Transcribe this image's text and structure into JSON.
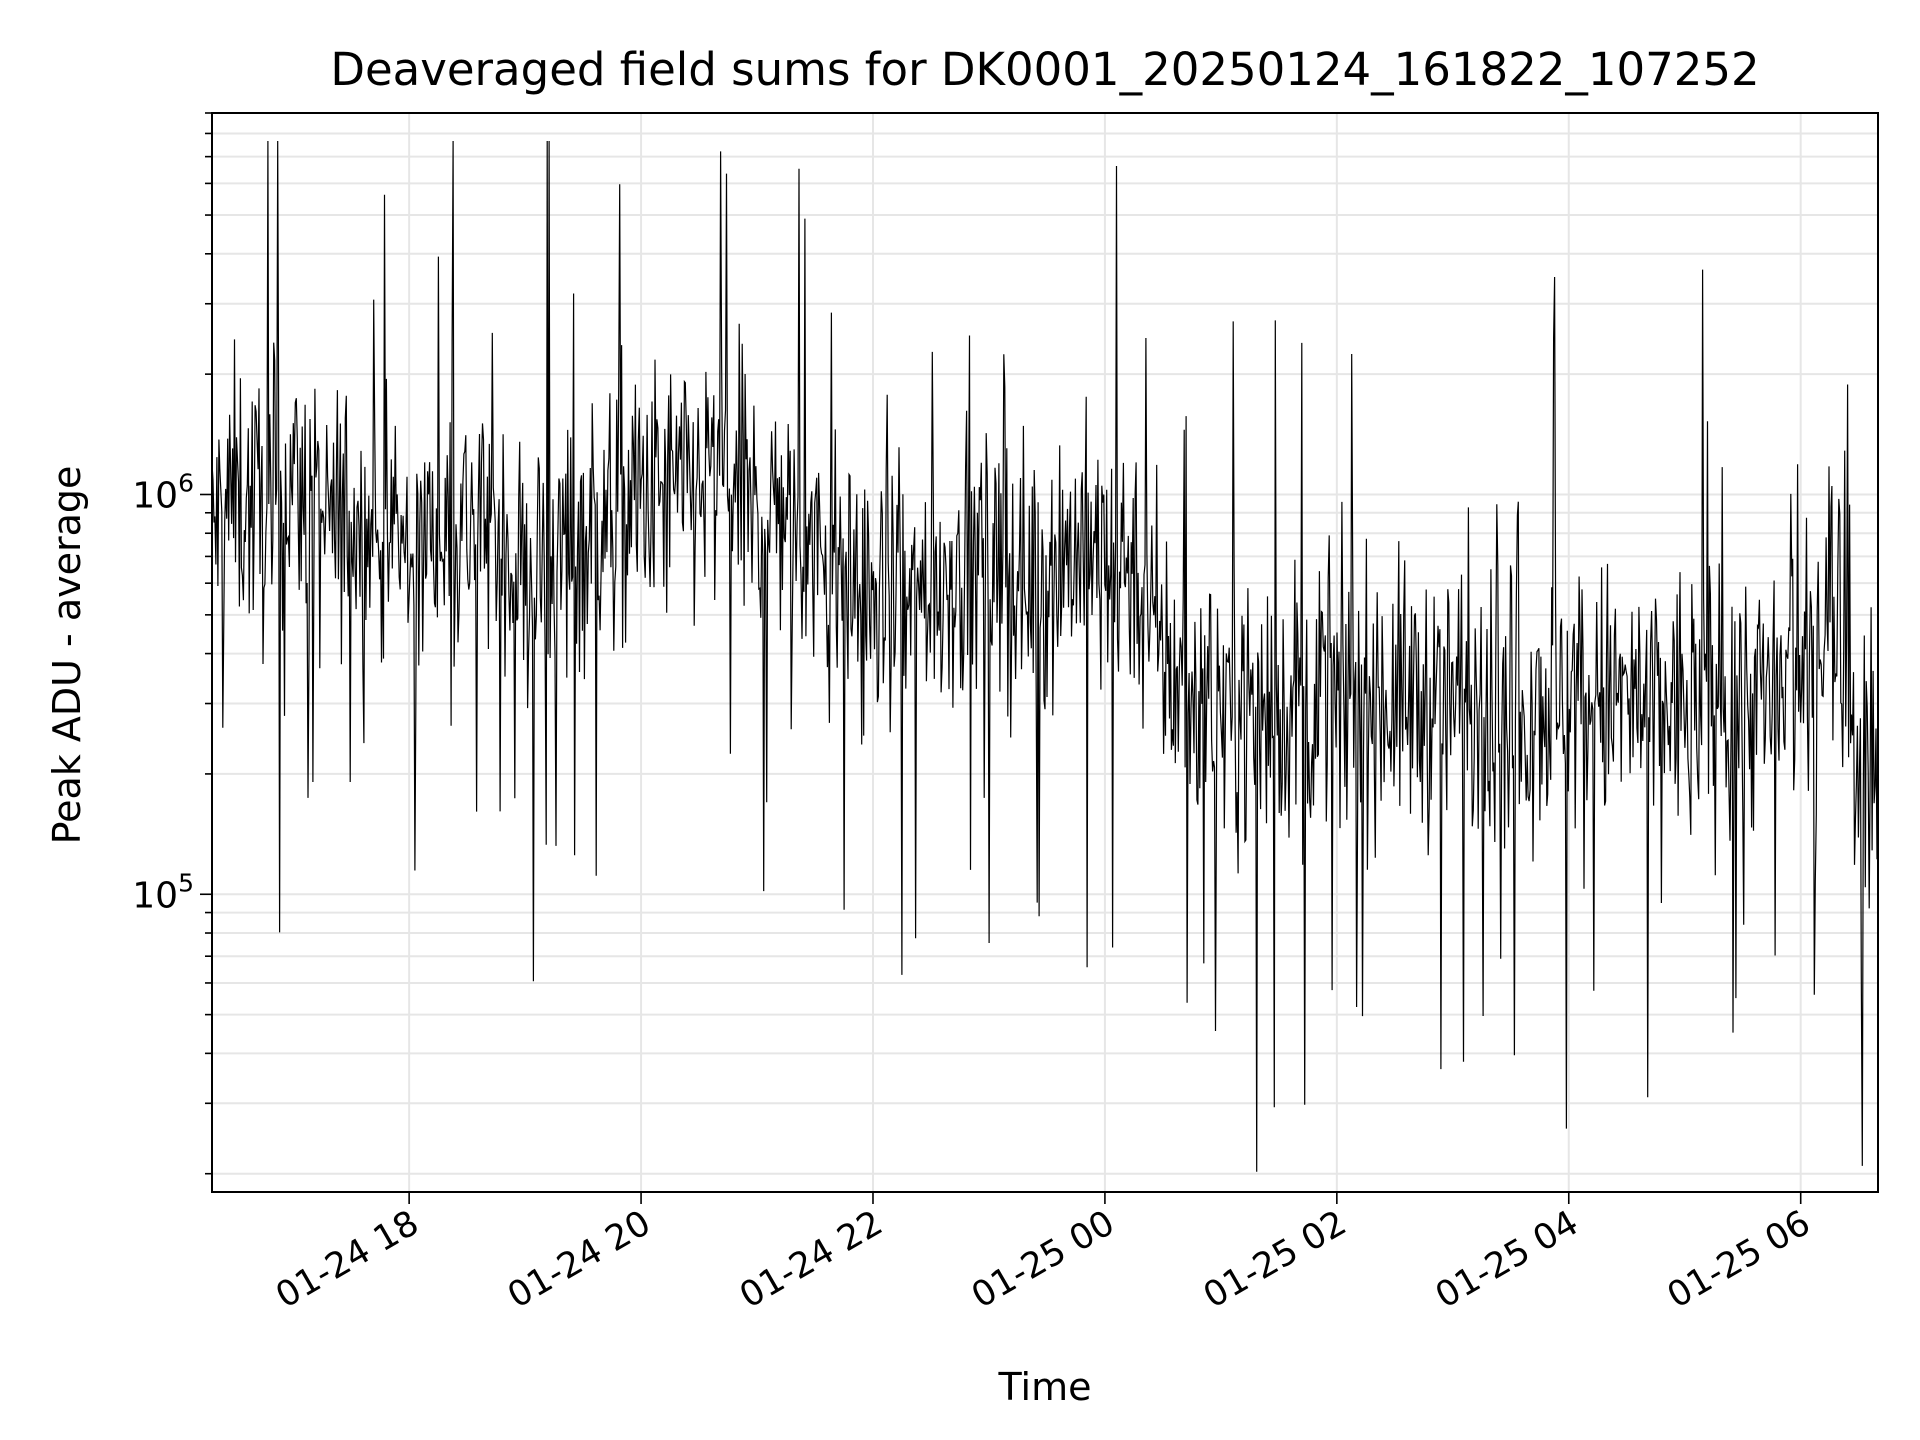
{
  "chart_data": {
    "type": "line",
    "title": "Deaveraged field sums for DK0001_20250124_161822_107252",
    "xlabel": "Time",
    "ylabel": "Peak ADU - average",
    "y_scale": "log",
    "ylim": [
      18000,
      9000000
    ],
    "xlim": [
      "2025-01-24 16:18",
      "2025-01-25 06:40"
    ],
    "grid": true,
    "line_color": "#000000",
    "x_ticks": [
      {
        "value": "2025-01-24 18:00",
        "label": "01-24 18"
      },
      {
        "value": "2025-01-24 20:00",
        "label": "01-24 20"
      },
      {
        "value": "2025-01-24 22:00",
        "label": "01-24 22"
      },
      {
        "value": "2025-01-25 00:00",
        "label": "01-25 00"
      },
      {
        "value": "2025-01-25 02:00",
        "label": "01-25 02"
      },
      {
        "value": "2025-01-25 04:00",
        "label": "01-25 04"
      },
      {
        "value": "2025-01-25 06:00",
        "label": "01-25 06"
      }
    ],
    "y_ticks": [
      {
        "value": 100000,
        "base": "10",
        "exp": "5"
      },
      {
        "value": 1000000,
        "base": "10",
        "exp": "6"
      }
    ],
    "series": [
      {
        "x": [
          "2025-01-24 16:18",
          "2025-01-24 16:30",
          "2025-01-24 16:45",
          "2025-01-24 17:00",
          "2025-01-24 17:15",
          "2025-01-24 17:30",
          "2025-01-24 17:45",
          "2025-01-24 18:00",
          "2025-01-24 18:15",
          "2025-01-24 18:30",
          "2025-01-24 18:45",
          "2025-01-24 19:00",
          "2025-01-24 19:15",
          "2025-01-24 19:30",
          "2025-01-24 19:45",
          "2025-01-24 20:00",
          "2025-01-24 20:15",
          "2025-01-24 20:30",
          "2025-01-24 20:45",
          "2025-01-24 21:00",
          "2025-01-24 21:15",
          "2025-01-24 21:30",
          "2025-01-24 21:45",
          "2025-01-24 22:00",
          "2025-01-24 22:15",
          "2025-01-24 22:30",
          "2025-01-24 22:45",
          "2025-01-24 23:00",
          "2025-01-24 23:15",
          "2025-01-24 23:30",
          "2025-01-24 23:45",
          "2025-01-25 00:00",
          "2025-01-25 00:15",
          "2025-01-25 00:30",
          "2025-01-25 00:45",
          "2025-01-25 01:00",
          "2025-01-25 01:15",
          "2025-01-25 01:30",
          "2025-01-25 01:45",
          "2025-01-25 02:00",
          "2025-01-25 02:15",
          "2025-01-25 02:30",
          "2025-01-25 02:45",
          "2025-01-25 03:00",
          "2025-01-25 03:15",
          "2025-01-25 03:30",
          "2025-01-25 03:45",
          "2025-01-25 04:00",
          "2025-01-25 04:15",
          "2025-01-25 04:30",
          "2025-01-25 04:45",
          "2025-01-25 05:00",
          "2025-01-25 05:15",
          "2025-01-25 05:30",
          "2025-01-25 05:45",
          "2025-01-25 06:00",
          "2025-01-25 06:15",
          "2025-01-25 06:25",
          "2025-01-25 06:40"
        ],
        "y": [
          800000,
          1000000,
          900000,
          1100000,
          800000,
          900000,
          750000,
          700000,
          800000,
          850000,
          900000,
          600000,
          700000,
          800000,
          900000,
          950000,
          1000000,
          1050000,
          1100000,
          900000,
          950000,
          700000,
          600000,
          550000,
          500000,
          600000,
          650000,
          700000,
          600000,
          650000,
          750000,
          650000,
          700000,
          380000,
          320000,
          310000,
          300000,
          290000,
          310000,
          300000,
          320000,
          310000,
          300000,
          310000,
          300000,
          290000,
          310000,
          320000,
          310000,
          300000,
          290000,
          300000,
          310000,
          320000,
          300000,
          330000,
          600000,
          300000,
          150000
        ]
      }
    ]
  }
}
